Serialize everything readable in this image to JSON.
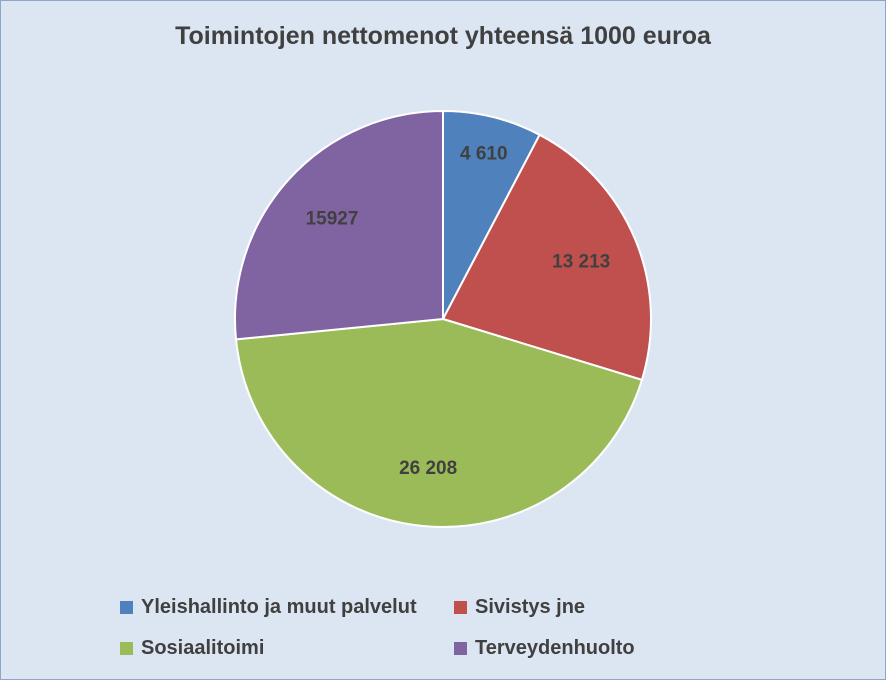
{
  "chart_data": {
    "type": "pie",
    "title": "Toimintojen nettomenot yhteensä 1000 euroa",
    "categories": [
      "Yleishallinto ja muut palvelut",
      "Sivistys jne",
      "Sosiaalitoimi",
      "Terveydenhuolto"
    ],
    "values": [
      4610,
      13213,
      26208,
      15927
    ],
    "data_labels": [
      "4 610",
      "13 213",
      "26 208",
      "15927"
    ],
    "colors": [
      "#4f81bd",
      "#c0504d",
      "#9bbb59",
      "#8064a2"
    ],
    "legend_position": "bottom"
  }
}
